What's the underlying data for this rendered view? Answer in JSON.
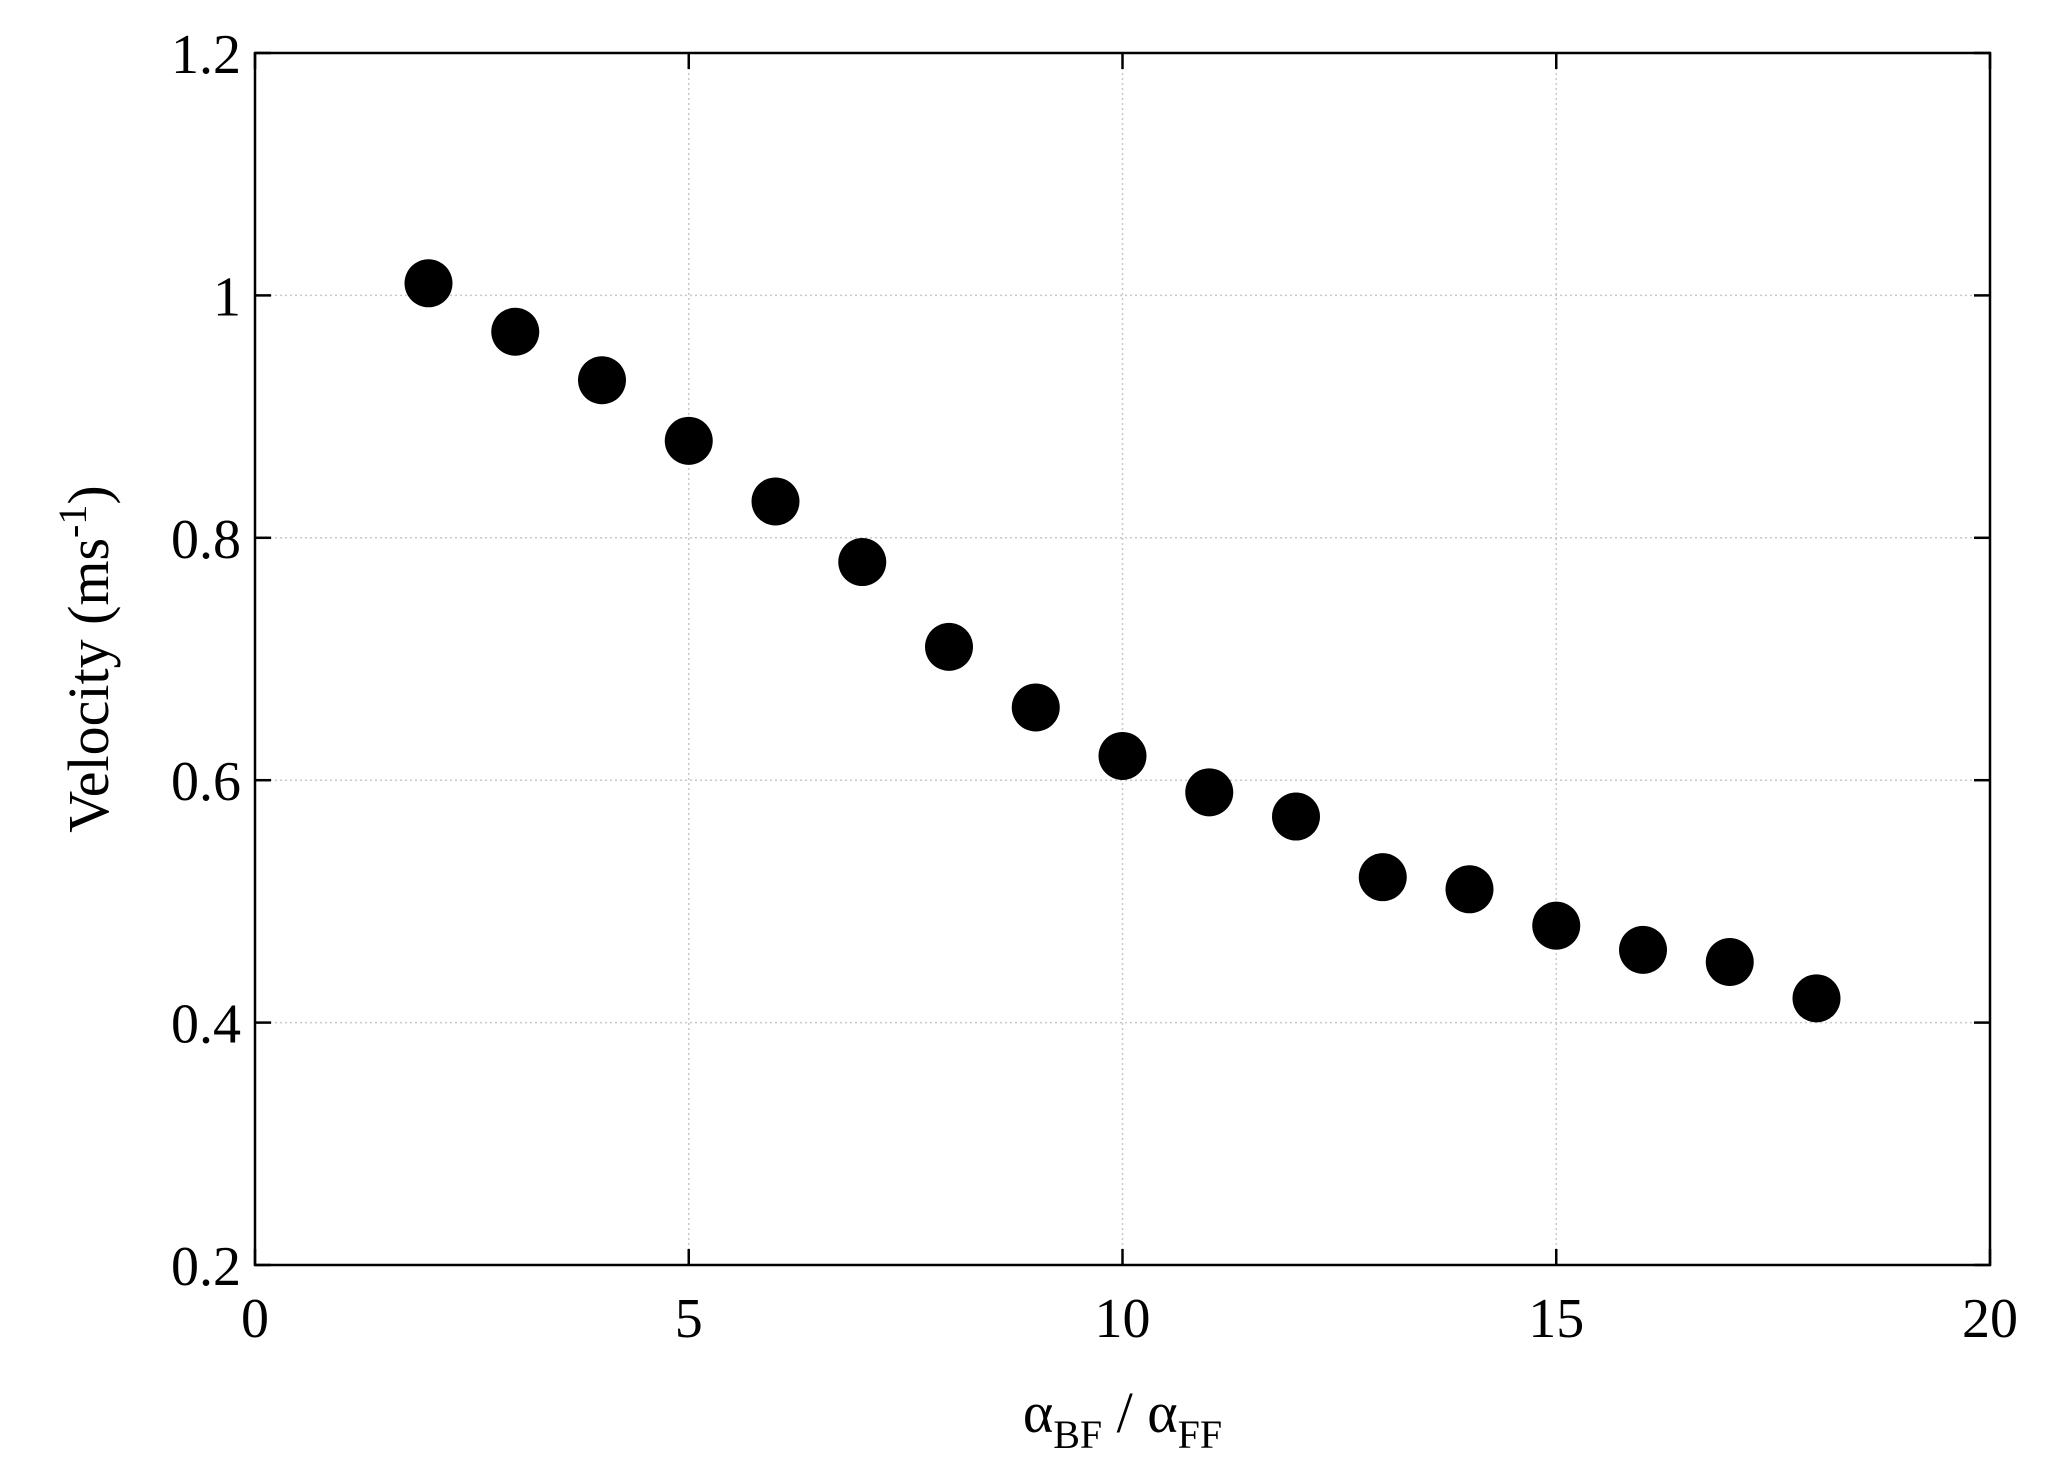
{
  "chart_data": {
    "type": "scatter",
    "title": "",
    "xlabel": {
      "parts": [
        {
          "text": "α",
          "style": "normal"
        },
        {
          "text": "BF",
          "style": "sub"
        },
        {
          "text": " / ",
          "style": "normal"
        },
        {
          "text": "α",
          "style": "normal"
        },
        {
          "text": "FF",
          "style": "sub"
        }
      ]
    },
    "ylabel": {
      "parts": [
        {
          "text": "Velocity (ms",
          "style": "normal"
        },
        {
          "text": "-1",
          "style": "sup"
        },
        {
          "text": ")",
          "style": "normal"
        }
      ]
    },
    "xlim": [
      0,
      20
    ],
    "ylim": [
      0.2,
      1.2
    ],
    "xticks": [
      0,
      5,
      10,
      15,
      20
    ],
    "xtick_labels": [
      "0",
      "5",
      "10",
      "15",
      "20"
    ],
    "yticks": [
      0.2,
      0.4,
      0.6,
      0.8,
      1.0,
      1.2
    ],
    "ytick_labels": [
      "0.2",
      "0.4",
      "0.6",
      "0.8",
      "1",
      "1.2"
    ],
    "grid": true,
    "legend": "none",
    "marker_color": "#000000",
    "series": [
      {
        "x": [
          2,
          3,
          4,
          5,
          6,
          7,
          8,
          9,
          10,
          11,
          12,
          13,
          14,
          15,
          16,
          17,
          18
        ],
        "y": [
          1.01,
          0.97,
          0.93,
          0.88,
          0.83,
          0.78,
          0.71,
          0.66,
          0.62,
          0.59,
          0.57,
          0.52,
          0.51,
          0.48,
          0.46,
          0.45,
          0.42
        ]
      }
    ]
  }
}
